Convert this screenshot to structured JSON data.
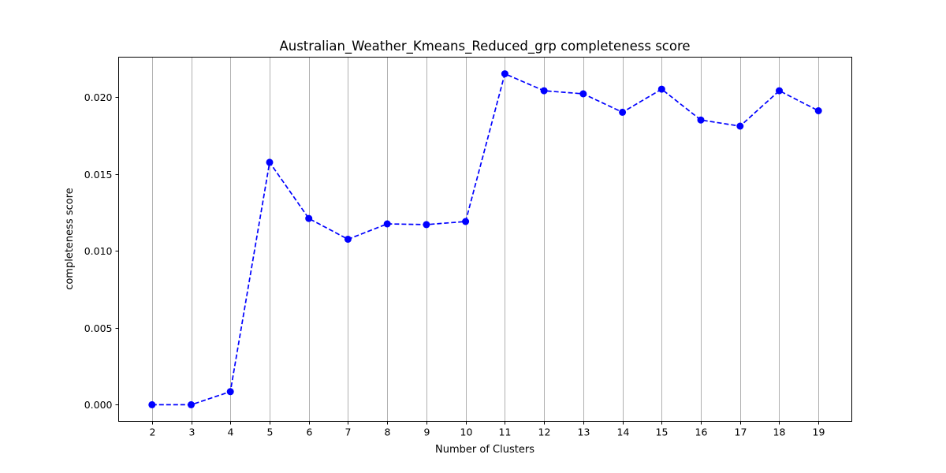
{
  "chart_data": {
    "type": "line",
    "title": "Australian_Weather_Kmeans_Reduced_grp completeness score",
    "xlabel": "Number of Clusters",
    "ylabel": "completeness score",
    "x": [
      2,
      3,
      4,
      5,
      6,
      7,
      8,
      9,
      10,
      11,
      12,
      13,
      14,
      15,
      16,
      17,
      18,
      19
    ],
    "x_tick_labels": [
      "2",
      "3",
      "4",
      "5",
      "6",
      "7",
      "8",
      "9",
      "10",
      "11",
      "12",
      "13",
      "14",
      "15",
      "16",
      "17",
      "18",
      "19"
    ],
    "y_ticks": [
      0.0,
      0.005,
      0.01,
      0.015,
      0.02
    ],
    "y_tick_labels": [
      "0.000",
      "0.005",
      "0.010",
      "0.015",
      "0.020"
    ],
    "xlim": [
      1.15,
      19.85
    ],
    "ylim": [
      -0.00108,
      0.02258
    ],
    "grid": "vertical",
    "series": [
      {
        "color": "#0000ff",
        "line_style": "dashed",
        "marker": "circle",
        "values": [
          0.0,
          0.0,
          0.00085,
          0.01575,
          0.0121,
          0.01075,
          0.01175,
          0.0117,
          0.0119,
          0.0215,
          0.0204,
          0.0202,
          0.019,
          0.0205,
          0.0185,
          0.0181,
          0.0204,
          0.0191
        ]
      }
    ]
  }
}
